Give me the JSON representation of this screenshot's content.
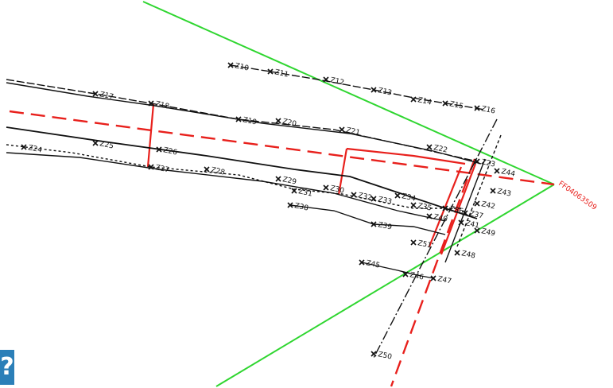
{
  "diagram": {
    "colors": {
      "boundary_green": "#2fd630",
      "axis_red": "#e8201c",
      "survey_black": "#111111",
      "badge_blue": "#2b7fb8"
    },
    "vertex_label": "FF04063509",
    "badge_glyph": "?",
    "point_labels": [
      "Z10",
      "Z11",
      "Z12",
      "Z13",
      "Z14",
      "Z15",
      "Z16",
      "Z17",
      "Z18",
      "Z19",
      "Z20",
      "Z21",
      "Z22",
      "Z23",
      "Z24",
      "Z25",
      "Z26",
      "Z27",
      "Z28",
      "Z29",
      "Z30",
      "Z31",
      "Z32",
      "Z33",
      "Z34",
      "Z35",
      "Z36",
      "Z37",
      "Z38",
      "Z39",
      "Z40",
      "Z41",
      "Z42",
      "Z43",
      "Z44",
      "Z45",
      "Z46",
      "Z47",
      "Z48",
      "Z49",
      "Z50",
      "Z51"
    ]
  }
}
